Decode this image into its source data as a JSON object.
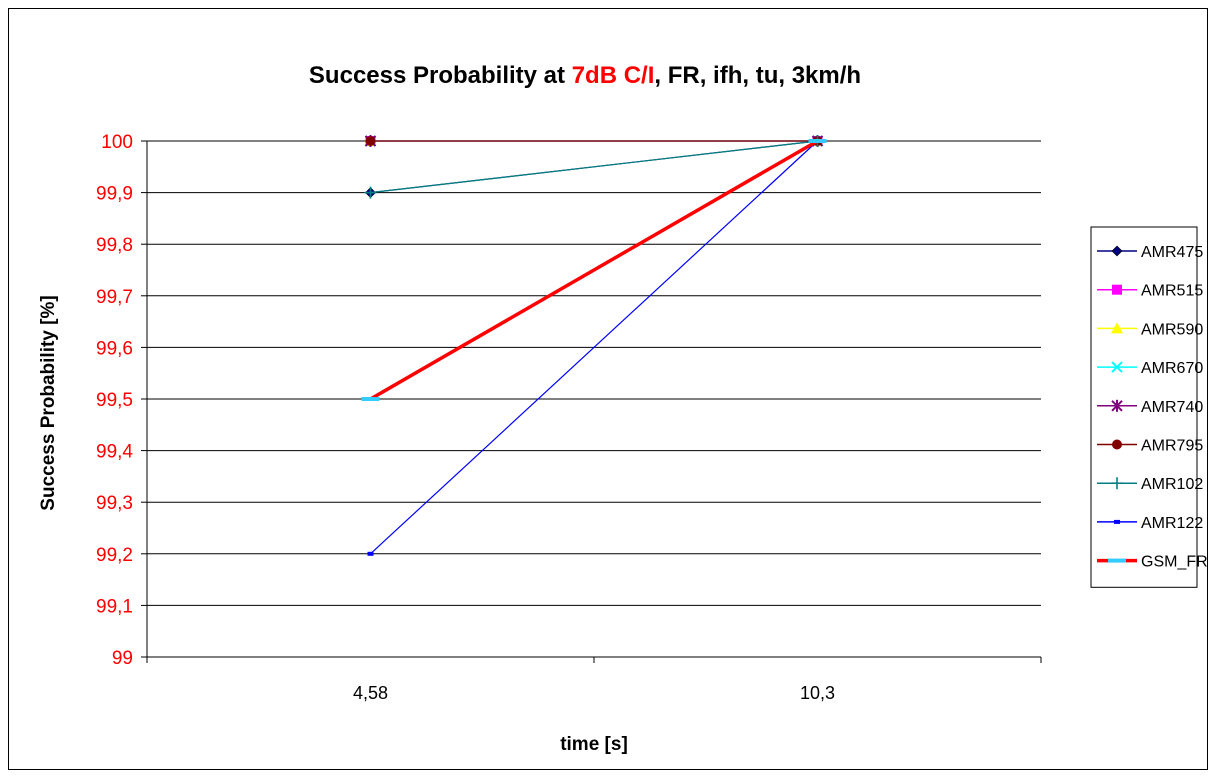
{
  "chart_data": {
    "type": "line",
    "title": {
      "parts": [
        {
          "text": "Success Probability at ",
          "color": "#000000"
        },
        {
          "text": "7dB C/I",
          "color": "#ff0000"
        },
        {
          "text": ", FR, ifh, tu, 3km/h",
          "color": "#000000"
        }
      ]
    },
    "xlabel": "time [s]",
    "ylabel": "Success Probability [%]",
    "categories": [
      "4,58",
      "10,3"
    ],
    "ylim": [
      99,
      100
    ],
    "yticks": [
      "99",
      "99,1",
      "99,2",
      "99,3",
      "99,4",
      "99,5",
      "99,6",
      "99,7",
      "99,8",
      "99,9",
      "100"
    ],
    "ytick_color": "#ff0000",
    "grid": true,
    "legend_position": "right",
    "series": [
      {
        "name": "AMR475",
        "values": [
          99.9,
          100
        ],
        "color": "#000080",
        "marker": "diamond",
        "width": 1.2
      },
      {
        "name": "AMR515",
        "values": [
          100,
          100
        ],
        "color": "#ff00ff",
        "marker": "square",
        "width": 1.2
      },
      {
        "name": "AMR590",
        "values": [
          100,
          100
        ],
        "color": "#ffff00",
        "marker": "triangle",
        "width": 1.2
      },
      {
        "name": "AMR670",
        "values": [
          100,
          100
        ],
        "color": "#00ffff",
        "marker": "x",
        "width": 1.2
      },
      {
        "name": "AMR740",
        "values": [
          100,
          100
        ],
        "color": "#800080",
        "marker": "star",
        "width": 1.2
      },
      {
        "name": "AMR795",
        "values": [
          100,
          100
        ],
        "color": "#800000",
        "marker": "circle",
        "width": 1.2
      },
      {
        "name": "AMR102",
        "values": [
          99.9,
          100
        ],
        "color": "#008080",
        "marker": "plus",
        "width": 1.2
      },
      {
        "name": "AMR122",
        "values": [
          99.2,
          100
        ],
        "color": "#0000ff",
        "marker": "dash",
        "width": 1.2
      },
      {
        "name": "GSM_FR",
        "values": [
          99.5,
          100
        ],
        "color": "#ff0000",
        "marker": "bar",
        "marker_color": "#33ccff",
        "width": 3.5
      }
    ]
  }
}
